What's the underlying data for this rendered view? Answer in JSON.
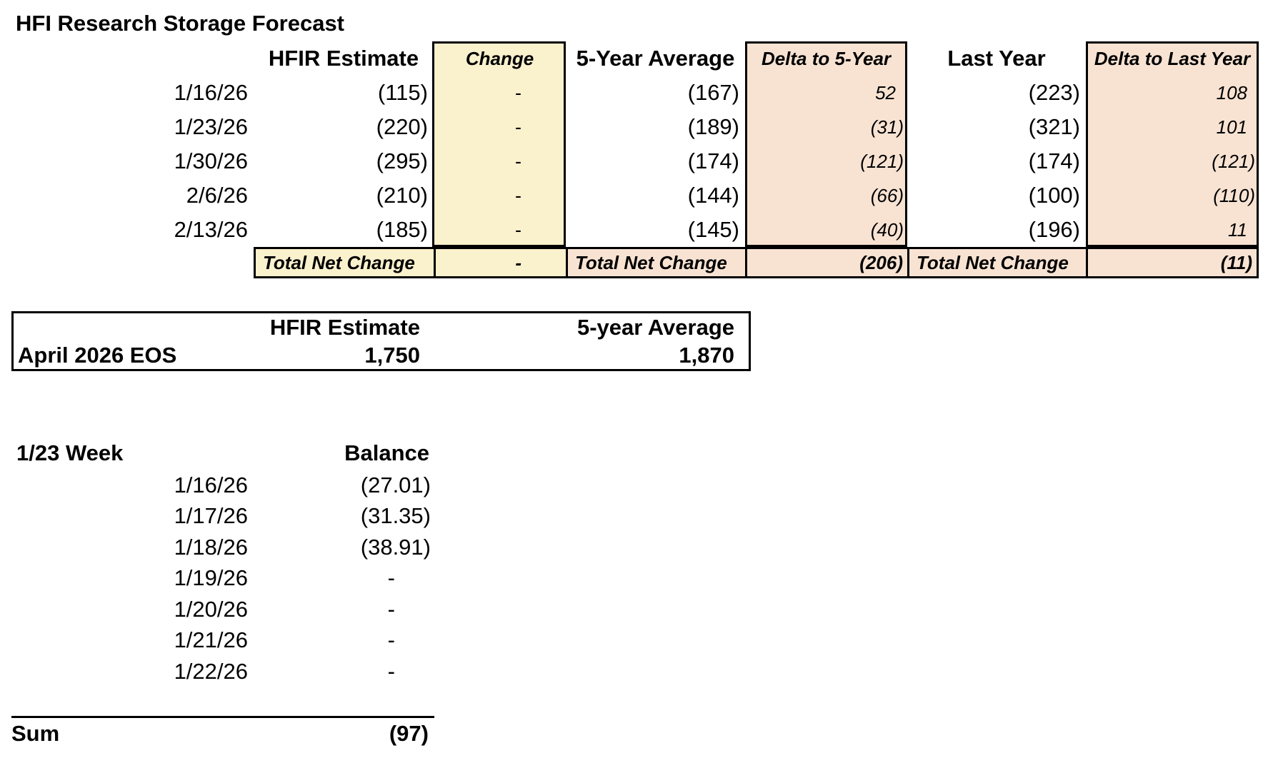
{
  "title": "HFI Research Storage Forecast",
  "colors": {
    "yellow_fill": "#FAF1CD",
    "pink_fill": "#F8E3D3",
    "border": "#000000"
  },
  "forecast_table": {
    "headers": {
      "estimate": "HFIR Estimate",
      "change": "Change",
      "avg5": "5-Year Average",
      "delta5": "Delta to 5-Year",
      "last_year": "Last Year",
      "delta_ly": "Delta to Last Year"
    },
    "rows": [
      {
        "date": "1/16/26",
        "estimate": "(115)",
        "change": "-",
        "avg5": "(167)",
        "delta5": "52",
        "last_year": "(223)",
        "delta_ly": "108"
      },
      {
        "date": "1/23/26",
        "estimate": "(220)",
        "change": "-",
        "avg5": "(189)",
        "delta5": "(31)",
        "last_year": "(321)",
        "delta_ly": "101"
      },
      {
        "date": "1/30/26",
        "estimate": "(295)",
        "change": "-",
        "avg5": "(174)",
        "delta5": "(121)",
        "last_year": "(174)",
        "delta_ly": "(121)"
      },
      {
        "date": "2/6/26",
        "estimate": "(210)",
        "change": "-",
        "avg5": "(144)",
        "delta5": "(66)",
        "last_year": "(100)",
        "delta_ly": "(110)"
      },
      {
        "date": "2/13/26",
        "estimate": "(185)",
        "change": "-",
        "avg5": "(145)",
        "delta5": "(40)",
        "last_year": "(196)",
        "delta_ly": "11"
      }
    ],
    "total": {
      "label_change": "Total Net Change",
      "change": "-",
      "label_avg": "Total Net Change",
      "delta5": "(206)",
      "label_ly": "Total Net Change",
      "delta_ly": "(11)"
    }
  },
  "eos_table": {
    "headers": {
      "estimate": "HFIR Estimate",
      "avg5": "5-year Average"
    },
    "row": {
      "label": "April 2026 EOS",
      "estimate": "1,750",
      "avg5": "1,870"
    }
  },
  "week_section": {
    "title": "1/23 Week",
    "balance_header": "Balance",
    "rows": [
      {
        "date": "1/16/26",
        "balance": "(27.01)"
      },
      {
        "date": "1/17/26",
        "balance": "(31.35)"
      },
      {
        "date": "1/18/26",
        "balance": "(38.91)"
      },
      {
        "date": "1/19/26",
        "balance": "-"
      },
      {
        "date": "1/20/26",
        "balance": "-"
      },
      {
        "date": "1/21/26",
        "balance": "-"
      },
      {
        "date": "1/22/26",
        "balance": "-"
      }
    ],
    "sum_label": "Sum",
    "sum_value": "(97)"
  }
}
